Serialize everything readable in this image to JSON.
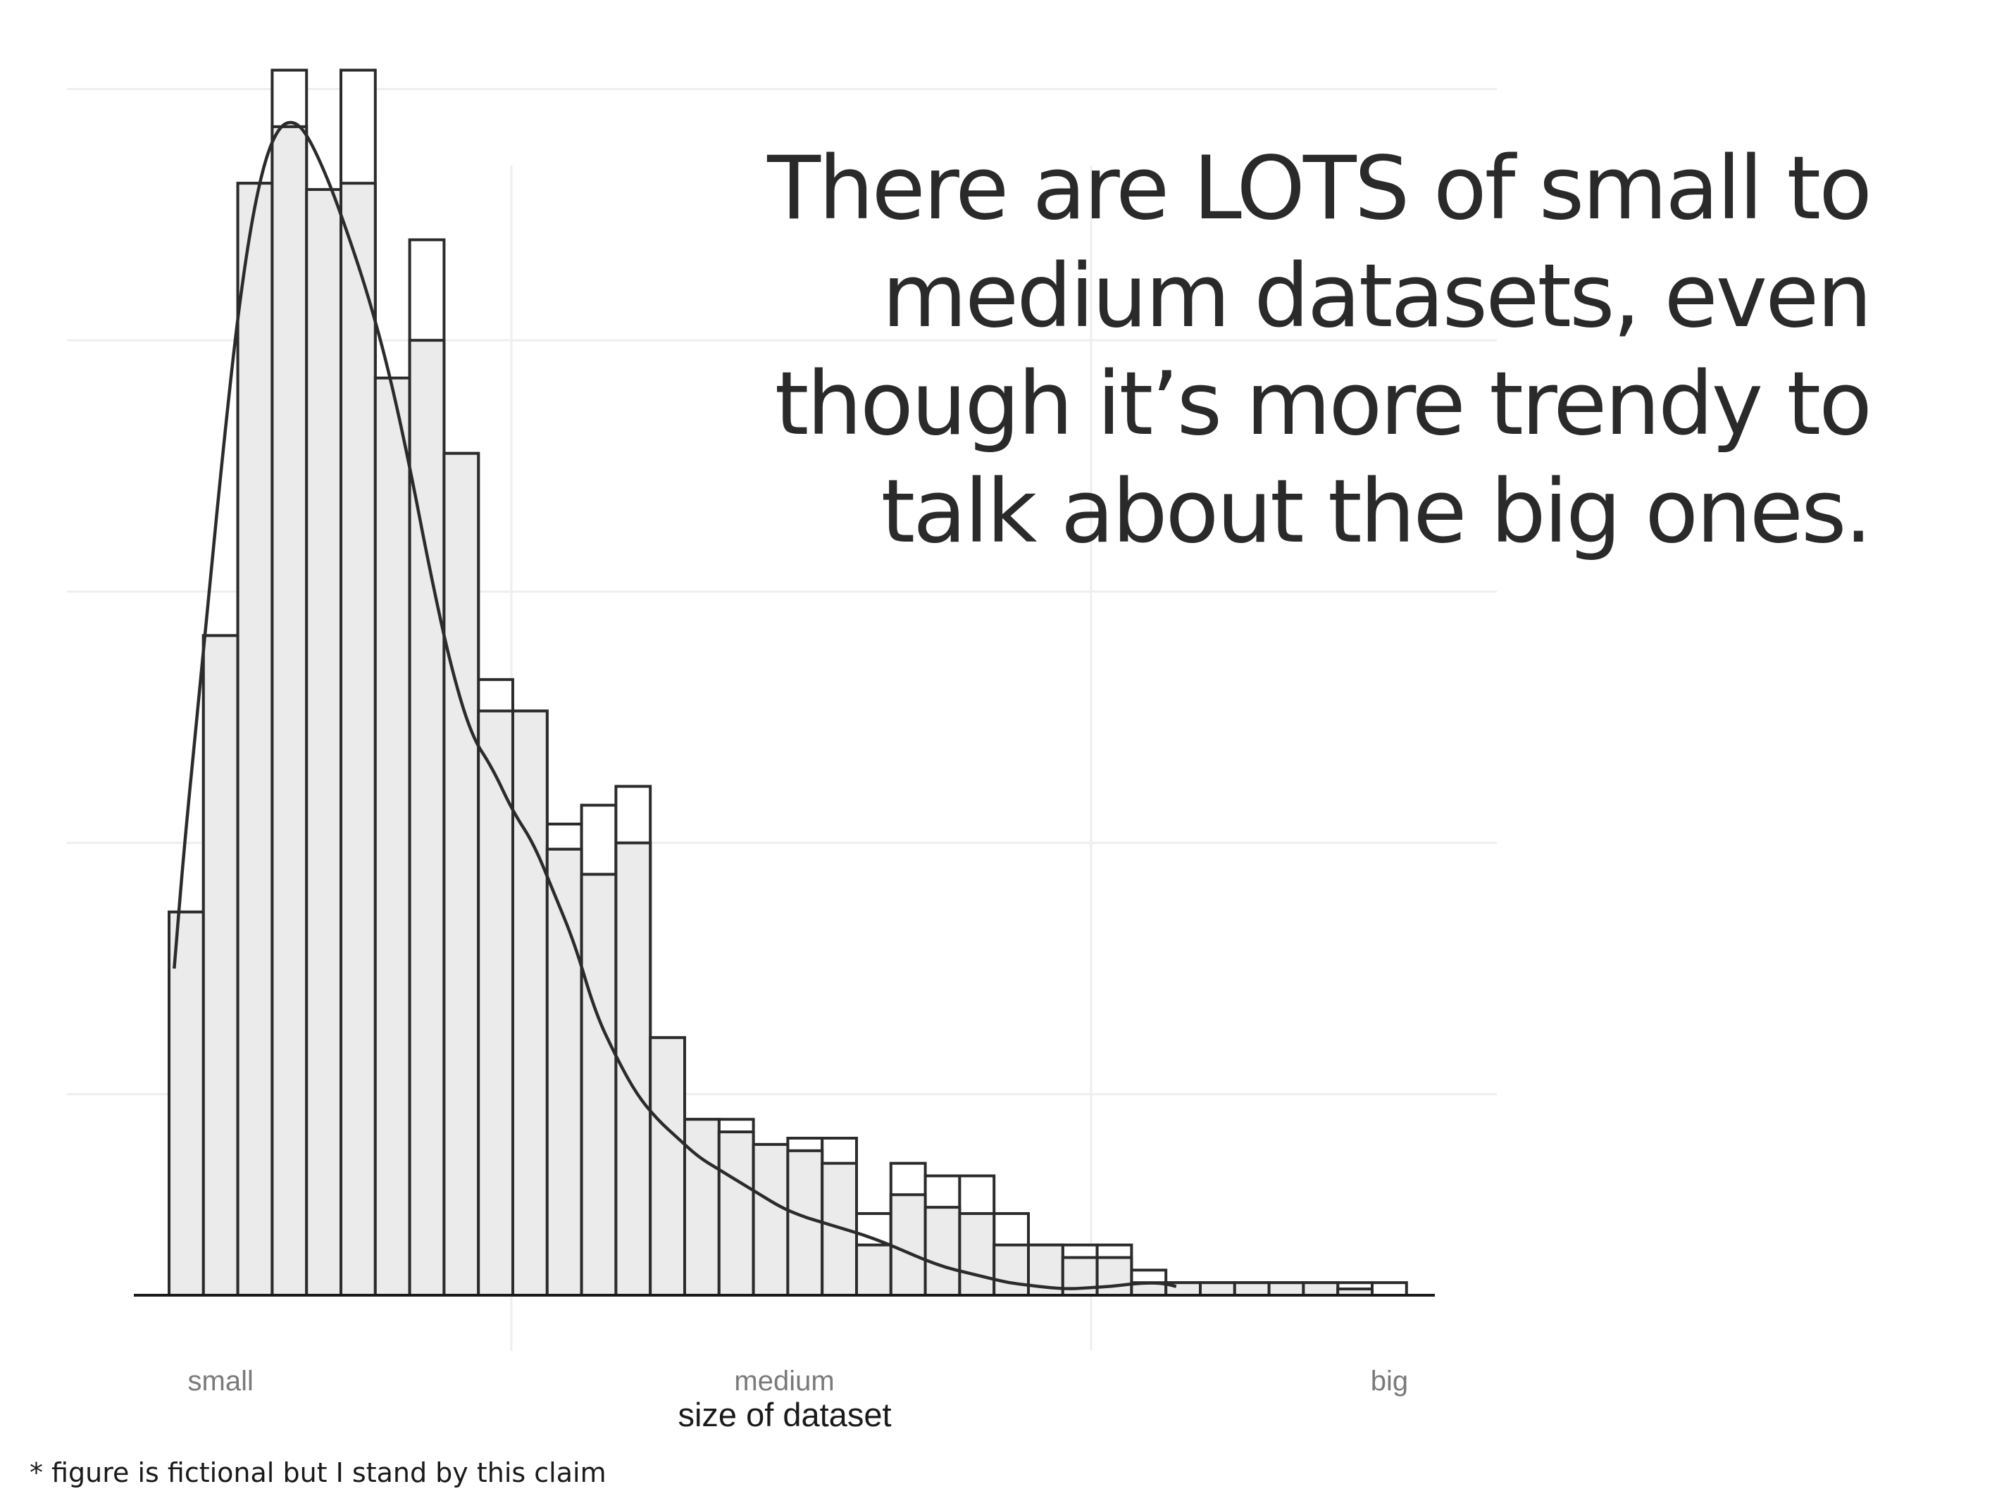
{
  "headline": {
    "lines": [
      "There are LOTS of small to",
      "medium datasets, even",
      "though it’s more trendy to",
      "talk about the big ones."
    ]
  },
  "footnote": "* figure is fictional but I stand by this claim",
  "chart_data": {
    "type": "bar",
    "title": "",
    "xlabel": "size of dataset",
    "ylabel": "",
    "x_ticks": [
      {
        "label": "small",
        "bin": 2
      },
      {
        "label": "medium",
        "bin": 18.4
      },
      {
        "label": "big",
        "bin": 36
      }
    ],
    "bin_count": 36,
    "ylim": [
      0,
      100
    ],
    "grid": true,
    "colors": {
      "bar_fill": "#ebebeb",
      "bar_stroke": "#2b2b2b",
      "grid": "#eeeeee",
      "curve": "#2b2b2b"
    },
    "series": [
      {
        "values": [
          30.5,
          52.5,
          88.5,
          97.5,
          86.5,
          97.5,
          72.5,
          84,
          67,
          49,
          46.5,
          37.5,
          39,
          40.5,
          20.5,
          14,
          14,
          12,
          12.5,
          12.5,
          6.5,
          10.5,
          9.5,
          9.5,
          6.5,
          4,
          4,
          4,
          2,
          1,
          1,
          1,
          1,
          1,
          1,
          1
        ]
      },
      {
        "values": [
          30.5,
          52.5,
          88.5,
          93,
          88,
          88.5,
          73,
          76,
          67,
          46.5,
          46.5,
          35.5,
          33.5,
          36,
          20.5,
          14,
          13,
          12,
          11.5,
          10.5,
          4,
          8,
          7,
          6.5,
          4,
          4,
          3,
          3,
          1,
          1,
          1,
          1,
          1,
          1,
          0.5,
          0
        ]
      }
    ],
    "density_curve": [
      [
        0.15,
        26
      ],
      [
        0.45,
        36
      ],
      [
        0.85,
        47
      ],
      [
        1.2,
        57
      ],
      [
        1.6,
        68
      ],
      [
        2.0,
        78
      ],
      [
        2.4,
        85.5
      ],
      [
        2.8,
        90.5
      ],
      [
        3.2,
        93
      ],
      [
        3.6,
        93.5
      ],
      [
        4.0,
        92.5
      ],
      [
        4.6,
        89
      ],
      [
        5.2,
        84.5
      ],
      [
        5.8,
        79.5
      ],
      [
        6.4,
        73.5
      ],
      [
        7.0,
        66
      ],
      [
        7.6,
        57.5
      ],
      [
        8.2,
        50
      ],
      [
        8.8,
        44.5
      ],
      [
        9.4,
        42
      ],
      [
        10.0,
        38.5
      ],
      [
        10.6,
        36
      ],
      [
        11.2,
        32
      ],
      [
        11.8,
        28
      ],
      [
        12.4,
        22.5
      ],
      [
        13.0,
        19
      ],
      [
        13.6,
        16
      ],
      [
        14.2,
        14
      ],
      [
        14.8,
        12.5
      ],
      [
        15.4,
        11
      ],
      [
        16.0,
        10
      ],
      [
        16.6,
        9
      ],
      [
        17.2,
        8
      ],
      [
        17.8,
        7
      ],
      [
        18.4,
        6.3
      ],
      [
        19.0,
        5.8
      ],
      [
        19.6,
        5.3
      ],
      [
        20.2,
        4.8
      ],
      [
        20.8,
        4.2
      ],
      [
        21.4,
        3.5
      ],
      [
        22.0,
        2.8
      ],
      [
        22.6,
        2.2
      ],
      [
        23.2,
        1.8
      ],
      [
        23.8,
        1.4
      ],
      [
        24.4,
        1.0
      ],
      [
        25.0,
        0.8
      ],
      [
        25.6,
        0.6
      ],
      [
        26.2,
        0.5
      ],
      [
        26.8,
        0.6
      ],
      [
        27.4,
        0.7
      ],
      [
        28.0,
        0.9
      ],
      [
        28.6,
        1.0
      ],
      [
        29.0,
        0.9
      ],
      [
        29.3,
        0.7
      ]
    ]
  }
}
